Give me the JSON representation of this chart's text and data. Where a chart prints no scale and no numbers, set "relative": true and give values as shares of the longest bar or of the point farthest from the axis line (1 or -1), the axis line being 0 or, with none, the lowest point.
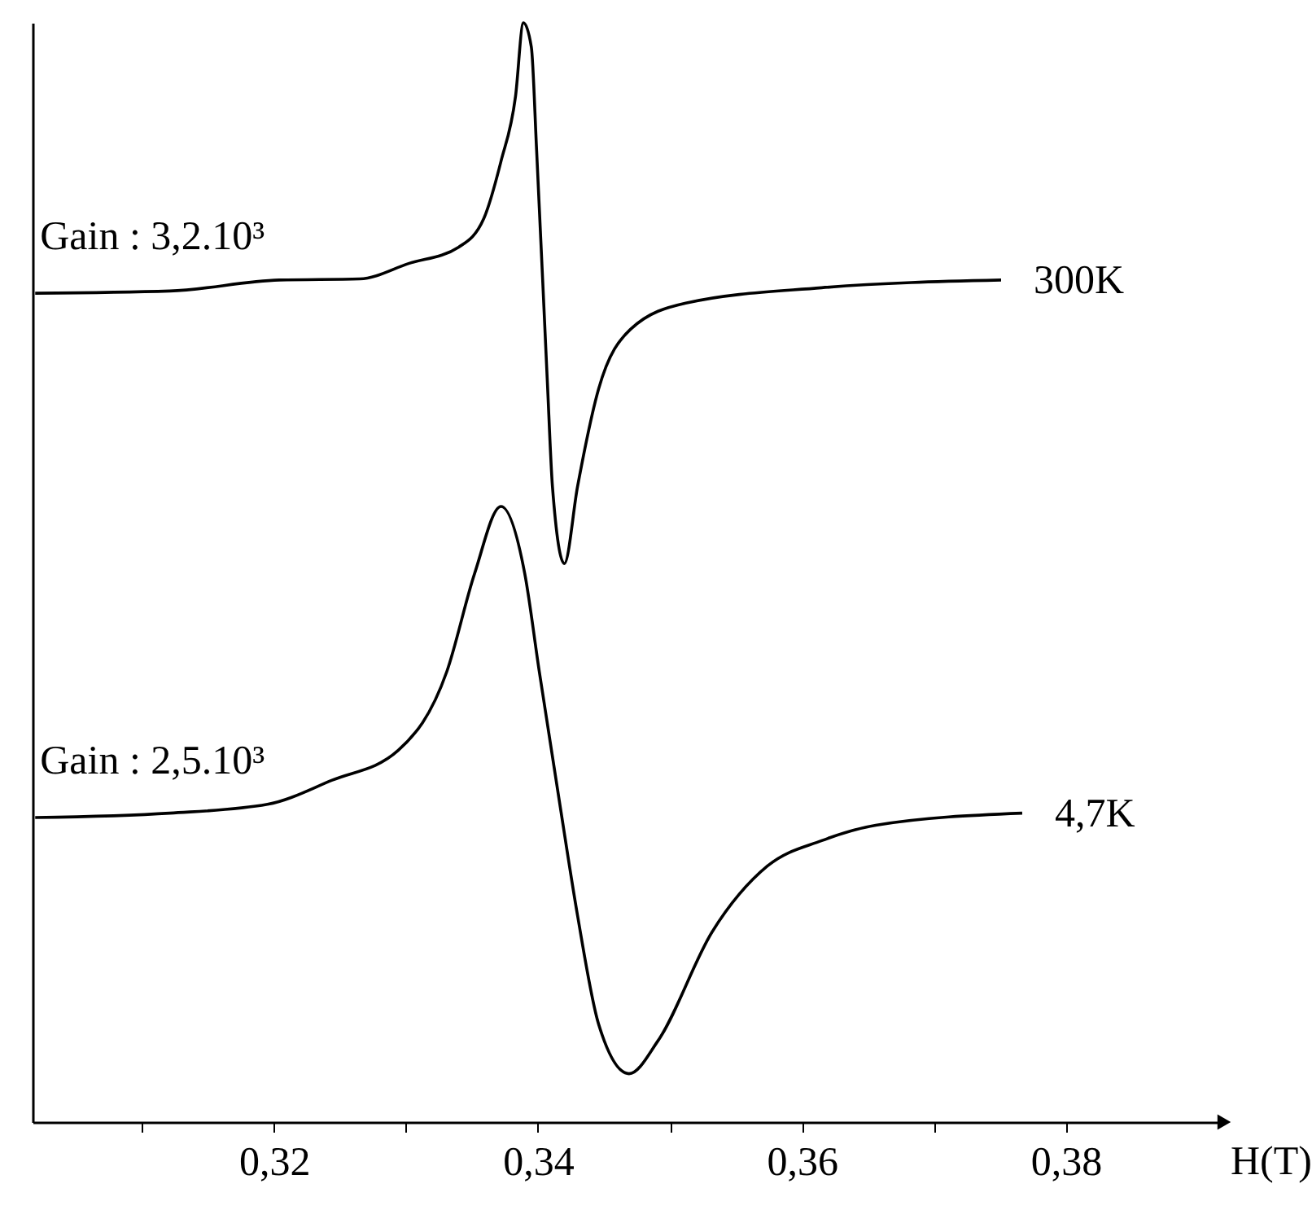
{
  "chart_data": {
    "type": "line",
    "relative": true,
    "xlabel": "H(T)",
    "xlim": [
      0.3017,
      0.392
    ],
    "xticks": [
      {
        "value": 0.31,
        "label": null
      },
      {
        "value": 0.32,
        "label": "0,32"
      },
      {
        "value": 0.33,
        "label": null
      },
      {
        "value": 0.34,
        "label": "0,34"
      },
      {
        "value": 0.35,
        "label": null
      },
      {
        "value": 0.36,
        "label": "0,36"
      },
      {
        "value": 0.37,
        "label": null
      },
      {
        "value": 0.38,
        "label": "0,38"
      }
    ],
    "series": [
      {
        "name": "300K",
        "color": "#000000",
        "x": [
          0.3019,
          0.3121,
          0.3204,
          0.3265,
          0.3302,
          0.334,
          0.3359,
          0.3372,
          0.3383,
          0.3389,
          0.3395,
          0.3399,
          0.3407,
          0.3411,
          0.342,
          0.343,
          0.3446,
          0.347,
          0.3512,
          0.3615,
          0.3751
        ],
        "values": [
          0.754,
          0.756,
          0.766,
          0.767,
          0.781,
          0.796,
          0.822,
          0.874,
          0.933,
          1,
          0.978,
          0.884,
          0.677,
          0.578,
          0.508,
          0.578,
          0.667,
          0.721,
          0.745,
          0.759,
          0.766
        ]
      },
      {
        "name": "4,7K",
        "color": "#000000",
        "x": [
          0.3019,
          0.3121,
          0.3195,
          0.3244,
          0.3294,
          0.3331,
          0.3352,
          0.3372,
          0.339,
          0.3401,
          0.3417,
          0.343,
          0.3446,
          0.3469,
          0.3491,
          0.3532,
          0.3574,
          0.3615,
          0.3656,
          0.3767
        ],
        "values": [
          0.277,
          0.281,
          0.289,
          0.311,
          0.338,
          0.41,
          0.499,
          0.56,
          0.499,
          0.41,
          0.286,
          0.188,
          0.089,
          0.044,
          0.074,
          0.173,
          0.233,
          0.256,
          0.27,
          0.281
        ]
      }
    ],
    "annotations": [
      "Gain : 3,2.10³",
      "Gain : 2,5.10³"
    ],
    "grid": false,
    "marker": "none",
    "line_style": "solid"
  }
}
